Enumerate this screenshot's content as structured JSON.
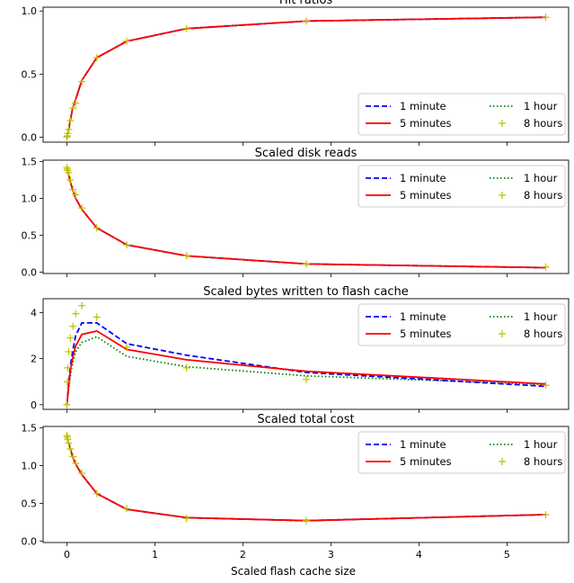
{
  "figure": {
    "xlabel": "Scaled flash cache size"
  },
  "legend_entries": [
    {
      "label": "1 minute",
      "color": "#0000ff",
      "style": "dashed"
    },
    {
      "label": "5 minutes",
      "color": "#ff0000",
      "style": "solid"
    },
    {
      "label": "1 hour",
      "color": "#008000",
      "style": "dotted"
    },
    {
      "label": "8 hours",
      "color": "#bfbf00",
      "style": "plus-markers"
    }
  ],
  "chart_data": [
    {
      "type": "line",
      "title": "Hit ratios",
      "xlabel": "",
      "ylabel": "",
      "xlim": [
        -0.27,
        5.7
      ],
      "ylim": [
        -0.04,
        1.03
      ],
      "yticks": [
        "0.0",
        "0.5",
        "1.0"
      ],
      "ytick_values": [
        0,
        0.5,
        1.0
      ],
      "legend_position": "lower right",
      "series": [
        {
          "name": "1 minute",
          "x": [
            0,
            0.02,
            0.04,
            0.07,
            0.1,
            0.17,
            0.34,
            0.68,
            1.36,
            2.72,
            5.44
          ],
          "y": [
            0,
            0.06,
            0.14,
            0.24,
            0.3,
            0.45,
            0.63,
            0.76,
            0.86,
            0.92,
            0.95
          ]
        },
        {
          "name": "5 minutes",
          "x": [
            0,
            0.02,
            0.04,
            0.07,
            0.1,
            0.17,
            0.34,
            0.68,
            1.36,
            2.72,
            5.44
          ],
          "y": [
            0,
            0.06,
            0.14,
            0.24,
            0.3,
            0.45,
            0.63,
            0.76,
            0.86,
            0.92,
            0.95
          ]
        },
        {
          "name": "1 hour",
          "x": [
            0,
            0.02,
            0.04,
            0.07,
            0.1,
            0.17,
            0.34,
            0.68,
            1.36,
            2.72,
            5.44
          ],
          "y": [
            0,
            0.06,
            0.14,
            0.24,
            0.3,
            0.45,
            0.63,
            0.76,
            0.86,
            0.92,
            0.95
          ]
        },
        {
          "name": "8 hours",
          "x": [
            0,
            0.005,
            0.01,
            0.02,
            0.04,
            0.07,
            0.1,
            0.17,
            0.34,
            0.68,
            1.36,
            2.72,
            5.44
          ],
          "y": [
            0,
            0.01,
            0.03,
            0.06,
            0.13,
            0.23,
            0.27,
            0.44,
            0.63,
            0.76,
            0.86,
            0.92,
            0.95
          ]
        }
      ]
    },
    {
      "type": "line",
      "title": "Scaled disk reads",
      "xlabel": "",
      "ylabel": "",
      "xlim": [
        -0.27,
        5.7
      ],
      "ylim": [
        -0.02,
        1.52
      ],
      "yticks": [
        "0.0",
        "0.5",
        "1.0",
        "1.5"
      ],
      "ytick_values": [
        0,
        0.5,
        1.0,
        1.5
      ],
      "legend_position": "upper right",
      "series": [
        {
          "name": "1 minute",
          "x": [
            0,
            0.02,
            0.04,
            0.07,
            0.1,
            0.17,
            0.34,
            0.68,
            1.36,
            2.72,
            5.44
          ],
          "y": [
            1.4,
            1.32,
            1.22,
            1.1,
            1.0,
            0.85,
            0.6,
            0.37,
            0.22,
            0.11,
            0.06
          ]
        },
        {
          "name": "5 minutes",
          "x": [
            0,
            0.02,
            0.04,
            0.07,
            0.1,
            0.17,
            0.34,
            0.68,
            1.36,
            2.72,
            5.44
          ],
          "y": [
            1.4,
            1.32,
            1.22,
            1.1,
            1.0,
            0.85,
            0.6,
            0.37,
            0.22,
            0.11,
            0.06
          ]
        },
        {
          "name": "1 hour",
          "x": [
            0,
            0.02,
            0.04,
            0.07,
            0.1,
            0.17,
            0.34,
            0.68,
            1.36,
            2.72,
            5.44
          ],
          "y": [
            1.4,
            1.32,
            1.22,
            1.1,
            1.0,
            0.85,
            0.6,
            0.37,
            0.22,
            0.11,
            0.06
          ]
        },
        {
          "name": "8 hours",
          "x": [
            0,
            0.005,
            0.01,
            0.02,
            0.04,
            0.07,
            0.1,
            0.17,
            0.34,
            0.68,
            1.36,
            2.72,
            5.44
          ],
          "y": [
            1.42,
            1.4,
            1.38,
            1.35,
            1.25,
            1.12,
            1.05,
            0.87,
            0.6,
            0.37,
            0.22,
            0.11,
            0.07
          ]
        }
      ]
    },
    {
      "type": "line",
      "title": "Scaled bytes written to flash cache",
      "xlabel": "",
      "ylabel": "",
      "xlim": [
        -0.27,
        5.7
      ],
      "ylim": [
        -0.2,
        4.6
      ],
      "yticks": [
        "0",
        "2",
        "4"
      ],
      "ytick_values": [
        0,
        2,
        4
      ],
      "legend_position": "upper right",
      "series": [
        {
          "name": "1 minute",
          "x": [
            0,
            0.02,
            0.04,
            0.07,
            0.1,
            0.17,
            0.34,
            0.68,
            1.36,
            2.72,
            5.44
          ],
          "y": [
            0,
            0.9,
            1.7,
            2.4,
            3.0,
            3.55,
            3.55,
            2.65,
            2.15,
            1.4,
            0.8
          ]
        },
        {
          "name": "5 minutes",
          "x": [
            0,
            0.02,
            0.04,
            0.07,
            0.1,
            0.17,
            0.34,
            0.68,
            1.36,
            2.72,
            5.44
          ],
          "y": [
            0,
            0.8,
            1.5,
            2.1,
            2.55,
            3.05,
            3.2,
            2.4,
            1.95,
            1.45,
            0.9
          ]
        },
        {
          "name": "1 hour",
          "x": [
            0,
            0.02,
            0.04,
            0.07,
            0.1,
            0.17,
            0.34,
            0.68,
            1.36,
            2.72,
            5.44
          ],
          "y": [
            0,
            0.7,
            1.3,
            1.9,
            2.3,
            2.7,
            2.95,
            2.1,
            1.65,
            1.25,
            0.88
          ]
        },
        {
          "name": "8 hours",
          "x": [
            0,
            0.005,
            0.01,
            0.02,
            0.04,
            0.07,
            0.1,
            0.17,
            0.34,
            0.68,
            1.36,
            2.72,
            5.44
          ],
          "y": [
            0,
            1.0,
            1.6,
            2.3,
            2.9,
            3.4,
            3.95,
            4.3,
            3.8,
            2.5,
            1.6,
            1.1,
            0.85
          ]
        }
      ]
    },
    {
      "type": "line",
      "title": "Scaled total cost",
      "xlabel": "Scaled flash cache size",
      "ylabel": "",
      "xlim": [
        -0.27,
        5.7
      ],
      "xticks": [
        "0",
        "1",
        "2",
        "3",
        "4",
        "5"
      ],
      "xtick_values": [
        0,
        1,
        2,
        3,
        4,
        5
      ],
      "ylim": [
        -0.02,
        1.52
      ],
      "yticks": [
        "0.0",
        "0.5",
        "1.0",
        "1.5"
      ],
      "ytick_values": [
        0,
        0.5,
        1.0,
        1.5
      ],
      "legend_position": "upper right",
      "series": [
        {
          "name": "1 minute",
          "x": [
            0,
            0.02,
            0.04,
            0.07,
            0.1,
            0.17,
            0.34,
            0.68,
            1.36,
            2.72,
            5.44
          ],
          "y": [
            1.38,
            1.3,
            1.22,
            1.1,
            1.02,
            0.88,
            0.63,
            0.42,
            0.31,
            0.27,
            0.35
          ]
        },
        {
          "name": "5 minutes",
          "x": [
            0,
            0.02,
            0.04,
            0.07,
            0.1,
            0.17,
            0.34,
            0.68,
            1.36,
            2.72,
            5.44
          ],
          "y": [
            1.38,
            1.3,
            1.22,
            1.1,
            1.02,
            0.88,
            0.63,
            0.42,
            0.31,
            0.27,
            0.35
          ]
        },
        {
          "name": "1 hour",
          "x": [
            0,
            0.02,
            0.04,
            0.07,
            0.1,
            0.17,
            0.34,
            0.68,
            1.36,
            2.72,
            5.44
          ],
          "y": [
            1.38,
            1.3,
            1.22,
            1.1,
            1.02,
            0.88,
            0.63,
            0.42,
            0.31,
            0.27,
            0.35
          ]
        },
        {
          "name": "8 hours",
          "x": [
            0,
            0.005,
            0.01,
            0.02,
            0.04,
            0.07,
            0.1,
            0.17,
            0.34,
            0.68,
            1.36,
            2.72,
            5.44
          ],
          "y": [
            1.4,
            1.38,
            1.35,
            1.3,
            1.22,
            1.12,
            1.03,
            0.9,
            0.63,
            0.43,
            0.3,
            0.27,
            0.35
          ]
        }
      ]
    }
  ]
}
